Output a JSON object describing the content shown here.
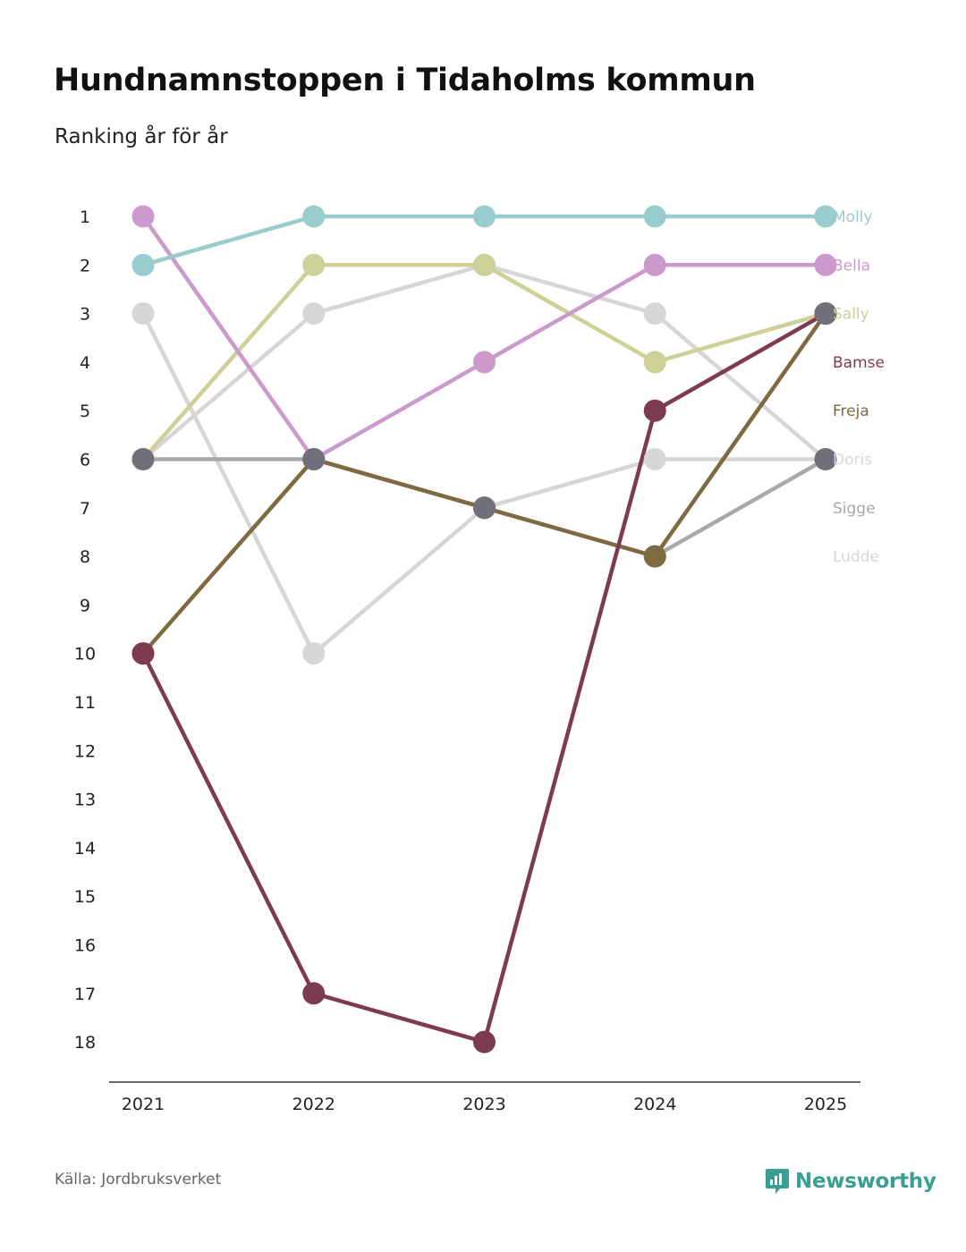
{
  "header": {
    "title": "Hundnamnstoppen i Tidaholms kommun",
    "subtitle": "Ranking år för år"
  },
  "footer": {
    "source": "Källa: Jordbruksverket",
    "brand": "Newsworthy"
  },
  "colors": {
    "brand": "#3a9e94",
    "axis": "#333333",
    "tick_text": "#222222"
  },
  "chart_data": {
    "type": "line",
    "title": "Hundnamnstoppen i Tidaholms kommun",
    "subtitle": "Ranking år för år",
    "x": [
      "2021",
      "2022",
      "2023",
      "2024",
      "2025"
    ],
    "y_ticks": [
      "1",
      "2",
      "3",
      "4",
      "5",
      "6",
      "7",
      "8",
      "9",
      "10",
      "11",
      "12",
      "13",
      "14",
      "15",
      "16",
      "17",
      "18"
    ],
    "ylim": [
      1,
      18
    ],
    "y_inverted": true,
    "xlabel": "",
    "ylabel": "",
    "series": [
      {
        "name": "Ludde",
        "color": "#d6d6d6",
        "values": [
          3,
          10,
          7,
          6,
          6
        ]
      },
      {
        "name": "Sigge",
        "color": "#a9a9a9",
        "values": [
          6,
          6,
          7,
          8,
          6
        ]
      },
      {
        "name": "Doris",
        "color": "#d6d6d6",
        "values": [
          6,
          3,
          2,
          3,
          6
        ]
      },
      {
        "name": "Sally",
        "color": "#cfcf98",
        "values": [
          6,
          2,
          2,
          4,
          3
        ]
      },
      {
        "name": "Freja",
        "color": "#7d6a40",
        "values": [
          10,
          6,
          7,
          8,
          3
        ]
      },
      {
        "name": "Bella",
        "color": "#cc99cc",
        "values": [
          1,
          6,
          4,
          2,
          2
        ]
      },
      {
        "name": "Bamse",
        "color": "#7d3b52",
        "values": [
          10,
          17,
          18,
          5,
          3
        ]
      },
      {
        "name": "Molly",
        "color": "#99cccc",
        "values": [
          2,
          1,
          1,
          1,
          1
        ]
      }
    ],
    "label_order": [
      "Molly",
      "Bella",
      "Sally",
      "Bamse",
      "Freja",
      "Doris",
      "Sigge",
      "Ludde"
    ],
    "overlap_marker_color": "#70707a"
  }
}
